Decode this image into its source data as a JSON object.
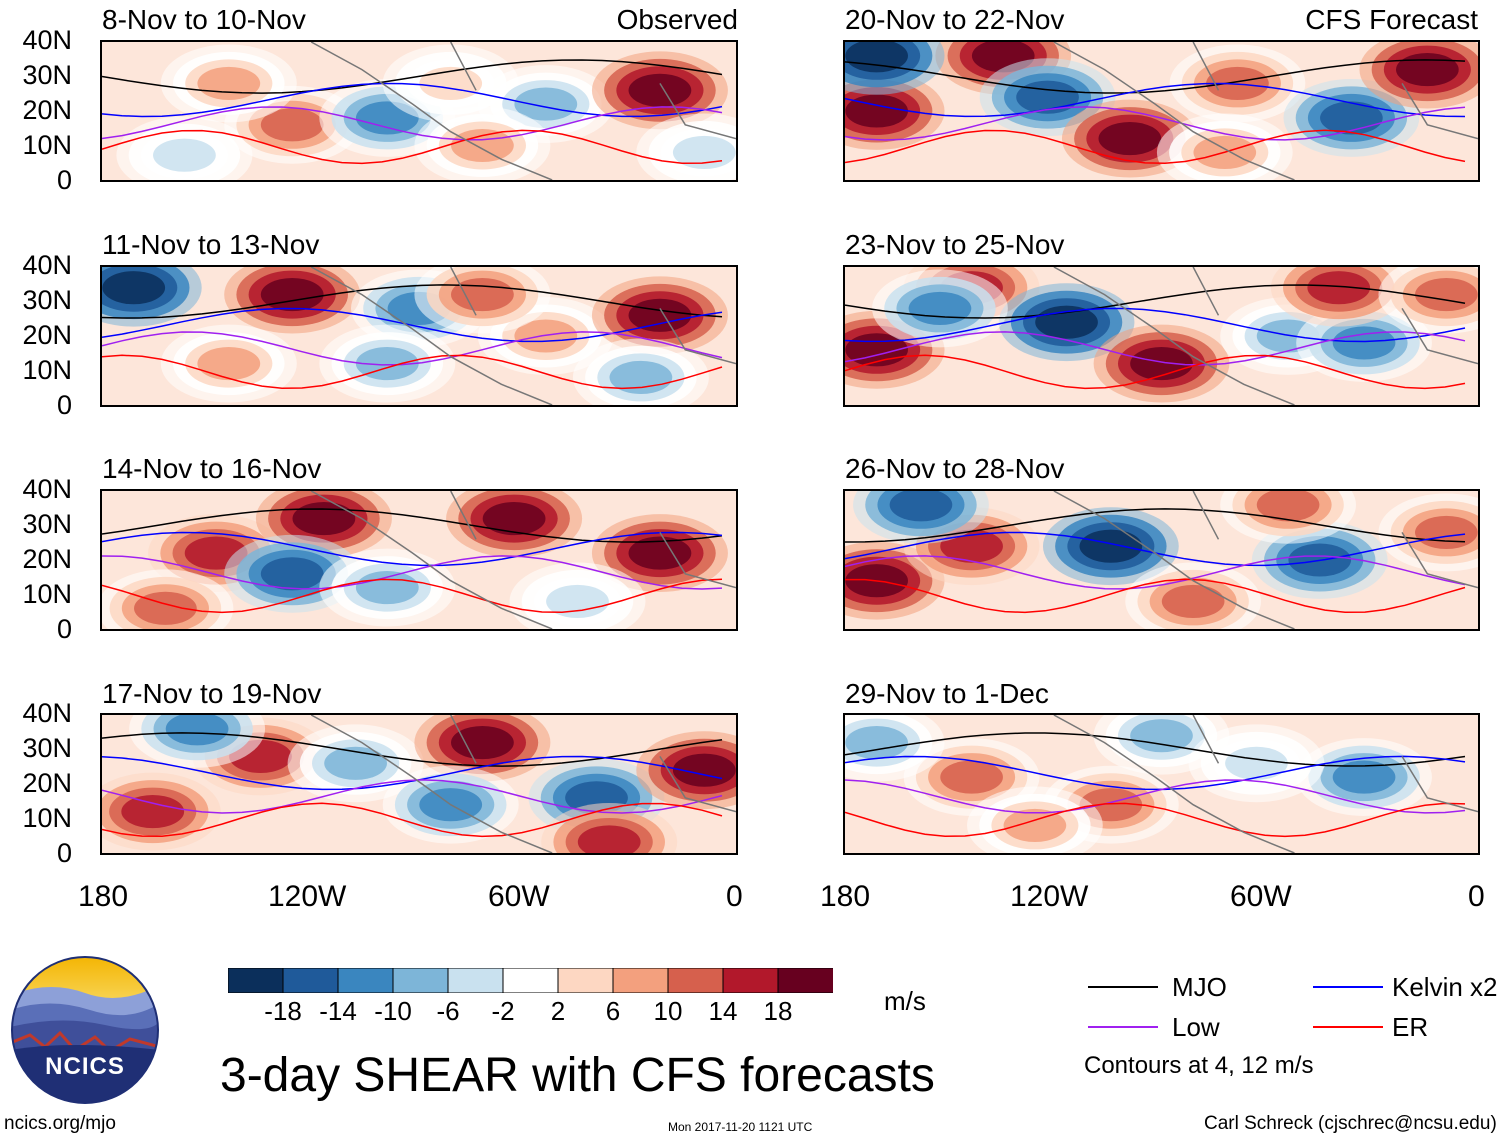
{
  "left_panels": [
    {
      "title": "8-Nov to 10-Nov",
      "tag": "Observed"
    },
    {
      "title": "11-Nov to 13-Nov",
      "tag": ""
    },
    {
      "title": "14-Nov to 16-Nov",
      "tag": ""
    },
    {
      "title": "17-Nov to 19-Nov",
      "tag": ""
    }
  ],
  "right_panels": [
    {
      "title": "20-Nov to 22-Nov",
      "tag": "CFS Forecast"
    },
    {
      "title": "23-Nov to 25-Nov",
      "tag": ""
    },
    {
      "title": "26-Nov to 28-Nov",
      "tag": ""
    },
    {
      "title": "29-Nov to 1-Dec",
      "tag": ""
    }
  ],
  "lat_labels": [
    "40N",
    "30N",
    "20N",
    "10N",
    "0"
  ],
  "lon_labels": [
    "180",
    "120W",
    "60W",
    "0"
  ],
  "colorbar": {
    "colors": [
      "#0b2f5b",
      "#1f5a9a",
      "#3a86bf",
      "#7db5d8",
      "#c9e1ef",
      "#ffffff",
      "#fdd7c2",
      "#f3a07e",
      "#d6604d",
      "#b2182b",
      "#67001f"
    ],
    "labels": [
      "-18",
      "-14",
      "-10",
      "-6",
      "-2",
      "2",
      "6",
      "10",
      "14",
      "18"
    ],
    "units": "m/s"
  },
  "title": "3-day SHEAR with CFS forecasts",
  "legend": [
    {
      "name": "MJO",
      "color": "#000000"
    },
    {
      "name": "Kelvin x2",
      "color": "#0000ff"
    },
    {
      "name": "Low",
      "color": "#a020f0"
    },
    {
      "name": "ER",
      "color": "#ff0000"
    }
  ],
  "contour_note": "Contours at 4, 12 m/s",
  "logo_text": "NCICS",
  "footer": {
    "left": "ncics.org/mjo",
    "center": "Mon 2017-11-20 1121 UTC",
    "right": "Carl Schreck (cjschrec@ncsu.edu)"
  }
}
